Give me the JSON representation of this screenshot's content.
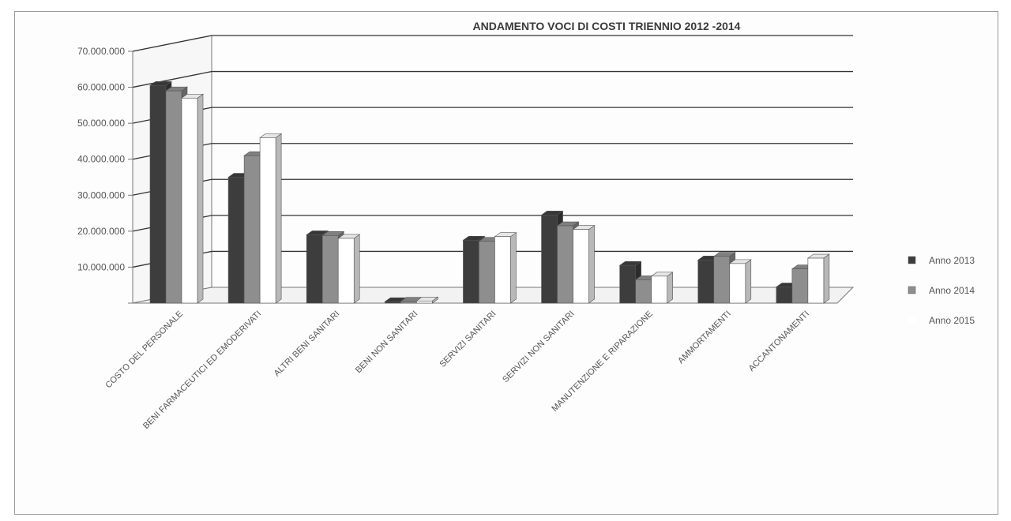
{
  "chart_data": {
    "type": "bar",
    "title": "ANDAMENTO  VOCI DI COSTI TRIENNIO 2012 -2014",
    "xlabel": "",
    "ylabel": "",
    "ylim": [
      0,
      70000000
    ],
    "yticks": [
      "",
      "10.000.000",
      "20.000.000",
      "30.000.000",
      "40.000.000",
      "50.000.000",
      "60.000.000",
      "70.000.000"
    ],
    "grid": true,
    "legend_position": "right",
    "categories": [
      "COSTO DEL PERSONALE",
      "BENI FARMACEUTICI ED EMODERIVATI",
      "ALTRI BENI SANITARI",
      "BENI NON SANITARI",
      "SERVIZI SANITARI",
      "SERVIZI NON SANITARI",
      "MANUTENZIONE E RIPARAZIONE",
      "AMMORTAMENTI",
      "ACCANTONAMENTI"
    ],
    "series": [
      {
        "name": "Anno 2013",
        "color": "#3d3d3d",
        "values": [
          60500000,
          35000000,
          19000000,
          400000,
          17500000,
          24500000,
          10500000,
          12000000,
          4500000
        ]
      },
      {
        "name": "Anno 2014",
        "color": "#8e8e8e",
        "values": [
          59000000,
          41000000,
          18800000,
          500000,
          17200000,
          21500000,
          6500000,
          13000000,
          9500000
        ]
      },
      {
        "name": "Anno 2015",
        "color": "#ffffff",
        "values": [
          57000000,
          46000000,
          18000000,
          600000,
          18500000,
          20500000,
          7500000,
          11000000,
          12500000
        ]
      }
    ]
  }
}
